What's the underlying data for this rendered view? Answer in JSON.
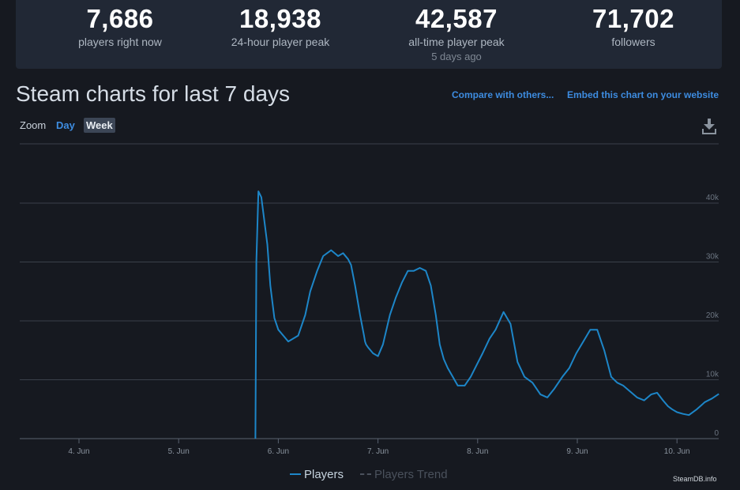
{
  "stats": [
    {
      "value": "7,686",
      "label": "players right now",
      "sub": ""
    },
    {
      "value": "18,938",
      "label": "24-hour player peak",
      "sub": ""
    },
    {
      "value": "42,587",
      "label": "all-time player peak",
      "sub": "5 days ago"
    },
    {
      "value": "71,702",
      "label": "followers",
      "sub": ""
    }
  ],
  "title": "Steam charts for last 7 days",
  "links": {
    "compare": "Compare with others...",
    "embed": "Embed this chart on your website"
  },
  "zoom": {
    "label": "Zoom",
    "options": [
      "Day",
      "Week"
    ],
    "selected": "Week"
  },
  "icons": {
    "download": "download-icon"
  },
  "colors": {
    "players_line": "#1d86c8",
    "accent_link": "#3d8ce0",
    "background": "#161920",
    "stats_panel": "#212835"
  },
  "credit": "SteamDB.info",
  "chart_data": {
    "type": "line",
    "title": "",
    "xlabel": "",
    "ylabel": "",
    "ylim": [
      0,
      40000
    ],
    "grid": true,
    "legend_position": "bottom-center",
    "x_ticks": [
      "4. Jun",
      "5. Jun",
      "6. Jun",
      "7. Jun",
      "8. Jun",
      "9. Jun",
      "10. Jun"
    ],
    "y_ticks": [
      "0",
      "10k",
      "20k",
      "30k",
      "40k"
    ],
    "y_tick_values": [
      0,
      10000,
      20000,
      30000,
      40000
    ],
    "legend": [
      "Players",
      "Players Trend"
    ],
    "series": [
      {
        "name": "Players",
        "x_days_since_jun4": [
          1.77,
          1.78,
          1.8,
          1.83,
          1.86,
          1.89,
          1.92,
          1.96,
          2.0,
          2.05,
          2.1,
          2.2,
          2.27,
          2.32,
          2.39,
          2.45,
          2.53,
          2.6,
          2.65,
          2.7,
          2.73,
          2.77,
          2.82,
          2.86,
          2.87,
          2.88,
          2.9,
          2.95,
          3.0,
          3.05,
          3.12,
          3.18,
          3.24,
          3.3,
          3.36,
          3.42,
          3.48,
          3.53,
          3.58,
          3.62,
          3.66,
          3.7,
          3.75,
          3.8,
          3.87,
          3.93,
          3.99,
          4.05,
          4.12,
          4.18,
          4.26,
          4.33,
          4.4,
          4.47,
          4.55,
          4.63,
          4.7,
          4.77,
          4.85,
          4.92,
          4.99,
          5.06,
          5.13,
          5.2,
          5.27,
          5.34,
          5.4,
          5.46,
          5.53,
          5.6,
          5.67,
          5.74,
          5.8,
          5.86,
          5.91,
          5.95,
          6.0,
          6.06,
          6.12,
          6.2,
          6.28,
          6.35,
          6.42
        ],
        "values": [
          0,
          30000,
          42000,
          41000,
          37000,
          33000,
          26000,
          20500,
          18500,
          17500,
          16500,
          17500,
          21000,
          25000,
          28500,
          31000,
          32000,
          31000,
          31500,
          30500,
          29500,
          26000,
          21000,
          17500,
          16500,
          16000,
          15500,
          14500,
          14000,
          16000,
          21000,
          24000,
          26500,
          28500,
          28500,
          29000,
          28500,
          26000,
          21000,
          16000,
          13500,
          12000,
          10500,
          9000,
          9000,
          10500,
          12500,
          14500,
          17000,
          18500,
          21500,
          19500,
          13000,
          10500,
          9500,
          7500,
          7000,
          8500,
          10500,
          12000,
          14500,
          16500,
          18500,
          18500,
          15000,
          10500,
          9500,
          9000,
          8000,
          7000,
          6500,
          7500,
          7800,
          6500,
          5500,
          5000,
          4500,
          4200,
          4000,
          5000,
          6200,
          6800,
          7600
        ]
      }
    ]
  }
}
